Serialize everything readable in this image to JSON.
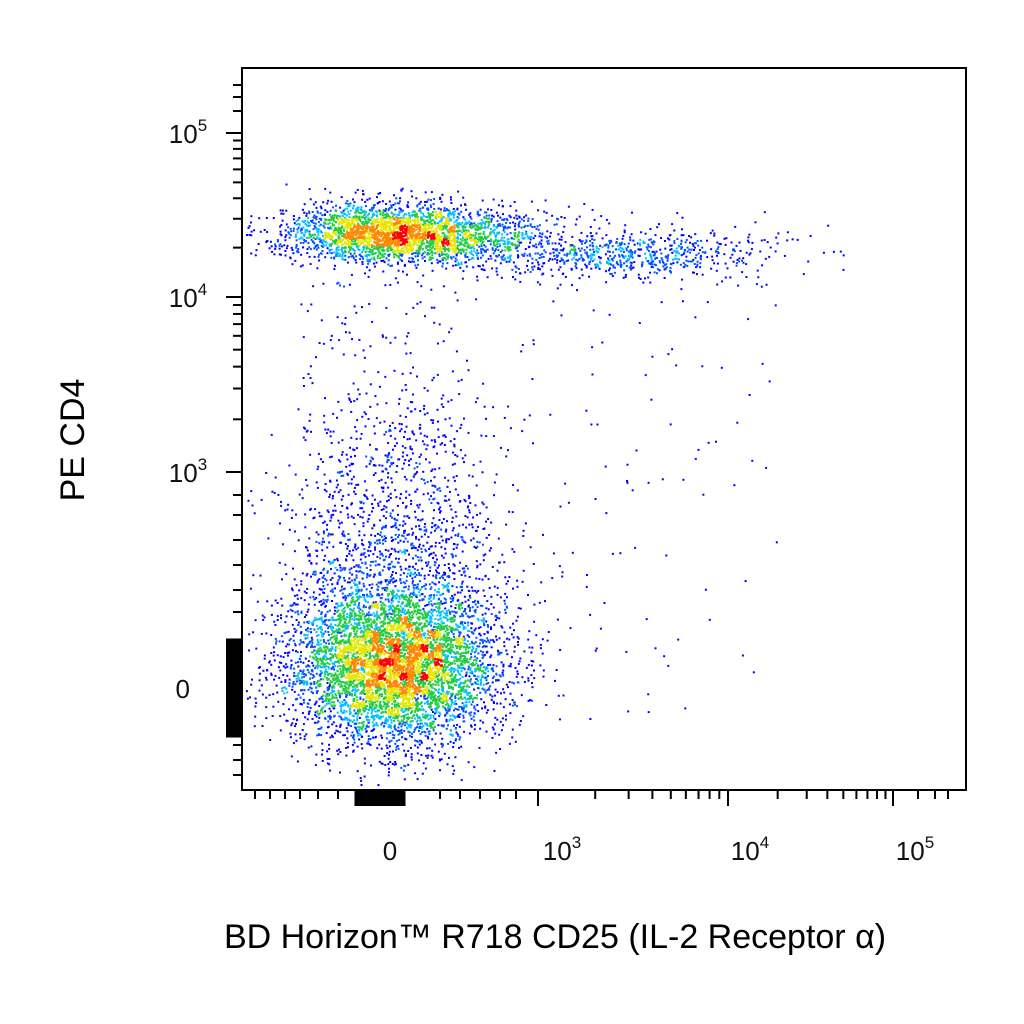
{
  "chart_data": {
    "type": "scatter",
    "style": "flow-cytometry density dot plot (pseudocolor: blue low → green → yellow → red high)",
    "xlabel": "BD Horizon™ R718 CD25 (IL-2 Receptor α)",
    "ylabel": "PE CD4",
    "x_scale": "biexponential",
    "y_scale": "biexponential",
    "x_ticks": [
      {
        "base": "0",
        "exp": "",
        "value": 0
      },
      {
        "base": "10",
        "exp": "3",
        "value": 1000
      },
      {
        "base": "10",
        "exp": "4",
        "value": 10000
      },
      {
        "base": "10",
        "exp": "5",
        "value": 100000
      }
    ],
    "y_ticks": [
      {
        "base": "0",
        "exp": "",
        "value": 0
      },
      {
        "base": "10",
        "exp": "3",
        "value": 1000
      },
      {
        "base": "10",
        "exp": "4",
        "value": 10000
      },
      {
        "base": "10",
        "exp": "5",
        "value": 100000
      }
    ],
    "xlim": [
      -200,
      200000
    ],
    "ylim": [
      -200,
      200000
    ],
    "grid": false,
    "legend": "none",
    "colors": {
      "low": "#0000ff",
      "mid_low": "#00bfff",
      "mid": "#22cc44",
      "mid_high": "#e6e600",
      "high": "#ff0000",
      "axis": "#000000"
    },
    "populations": [
      {
        "name": "CD4-negative, CD25-negative",
        "x_center": 0,
        "y_center": 0,
        "relative_density": "highest"
      },
      {
        "name": "CD4-positive, CD25-negative",
        "x_center": 0,
        "y_center": 25000,
        "relative_density": "high"
      },
      {
        "name": "CD4-positive, CD25-positive",
        "x_center_range": [
          1000,
          15000
        ],
        "y_center": 18000,
        "relative_density": "low"
      }
    ]
  }
}
